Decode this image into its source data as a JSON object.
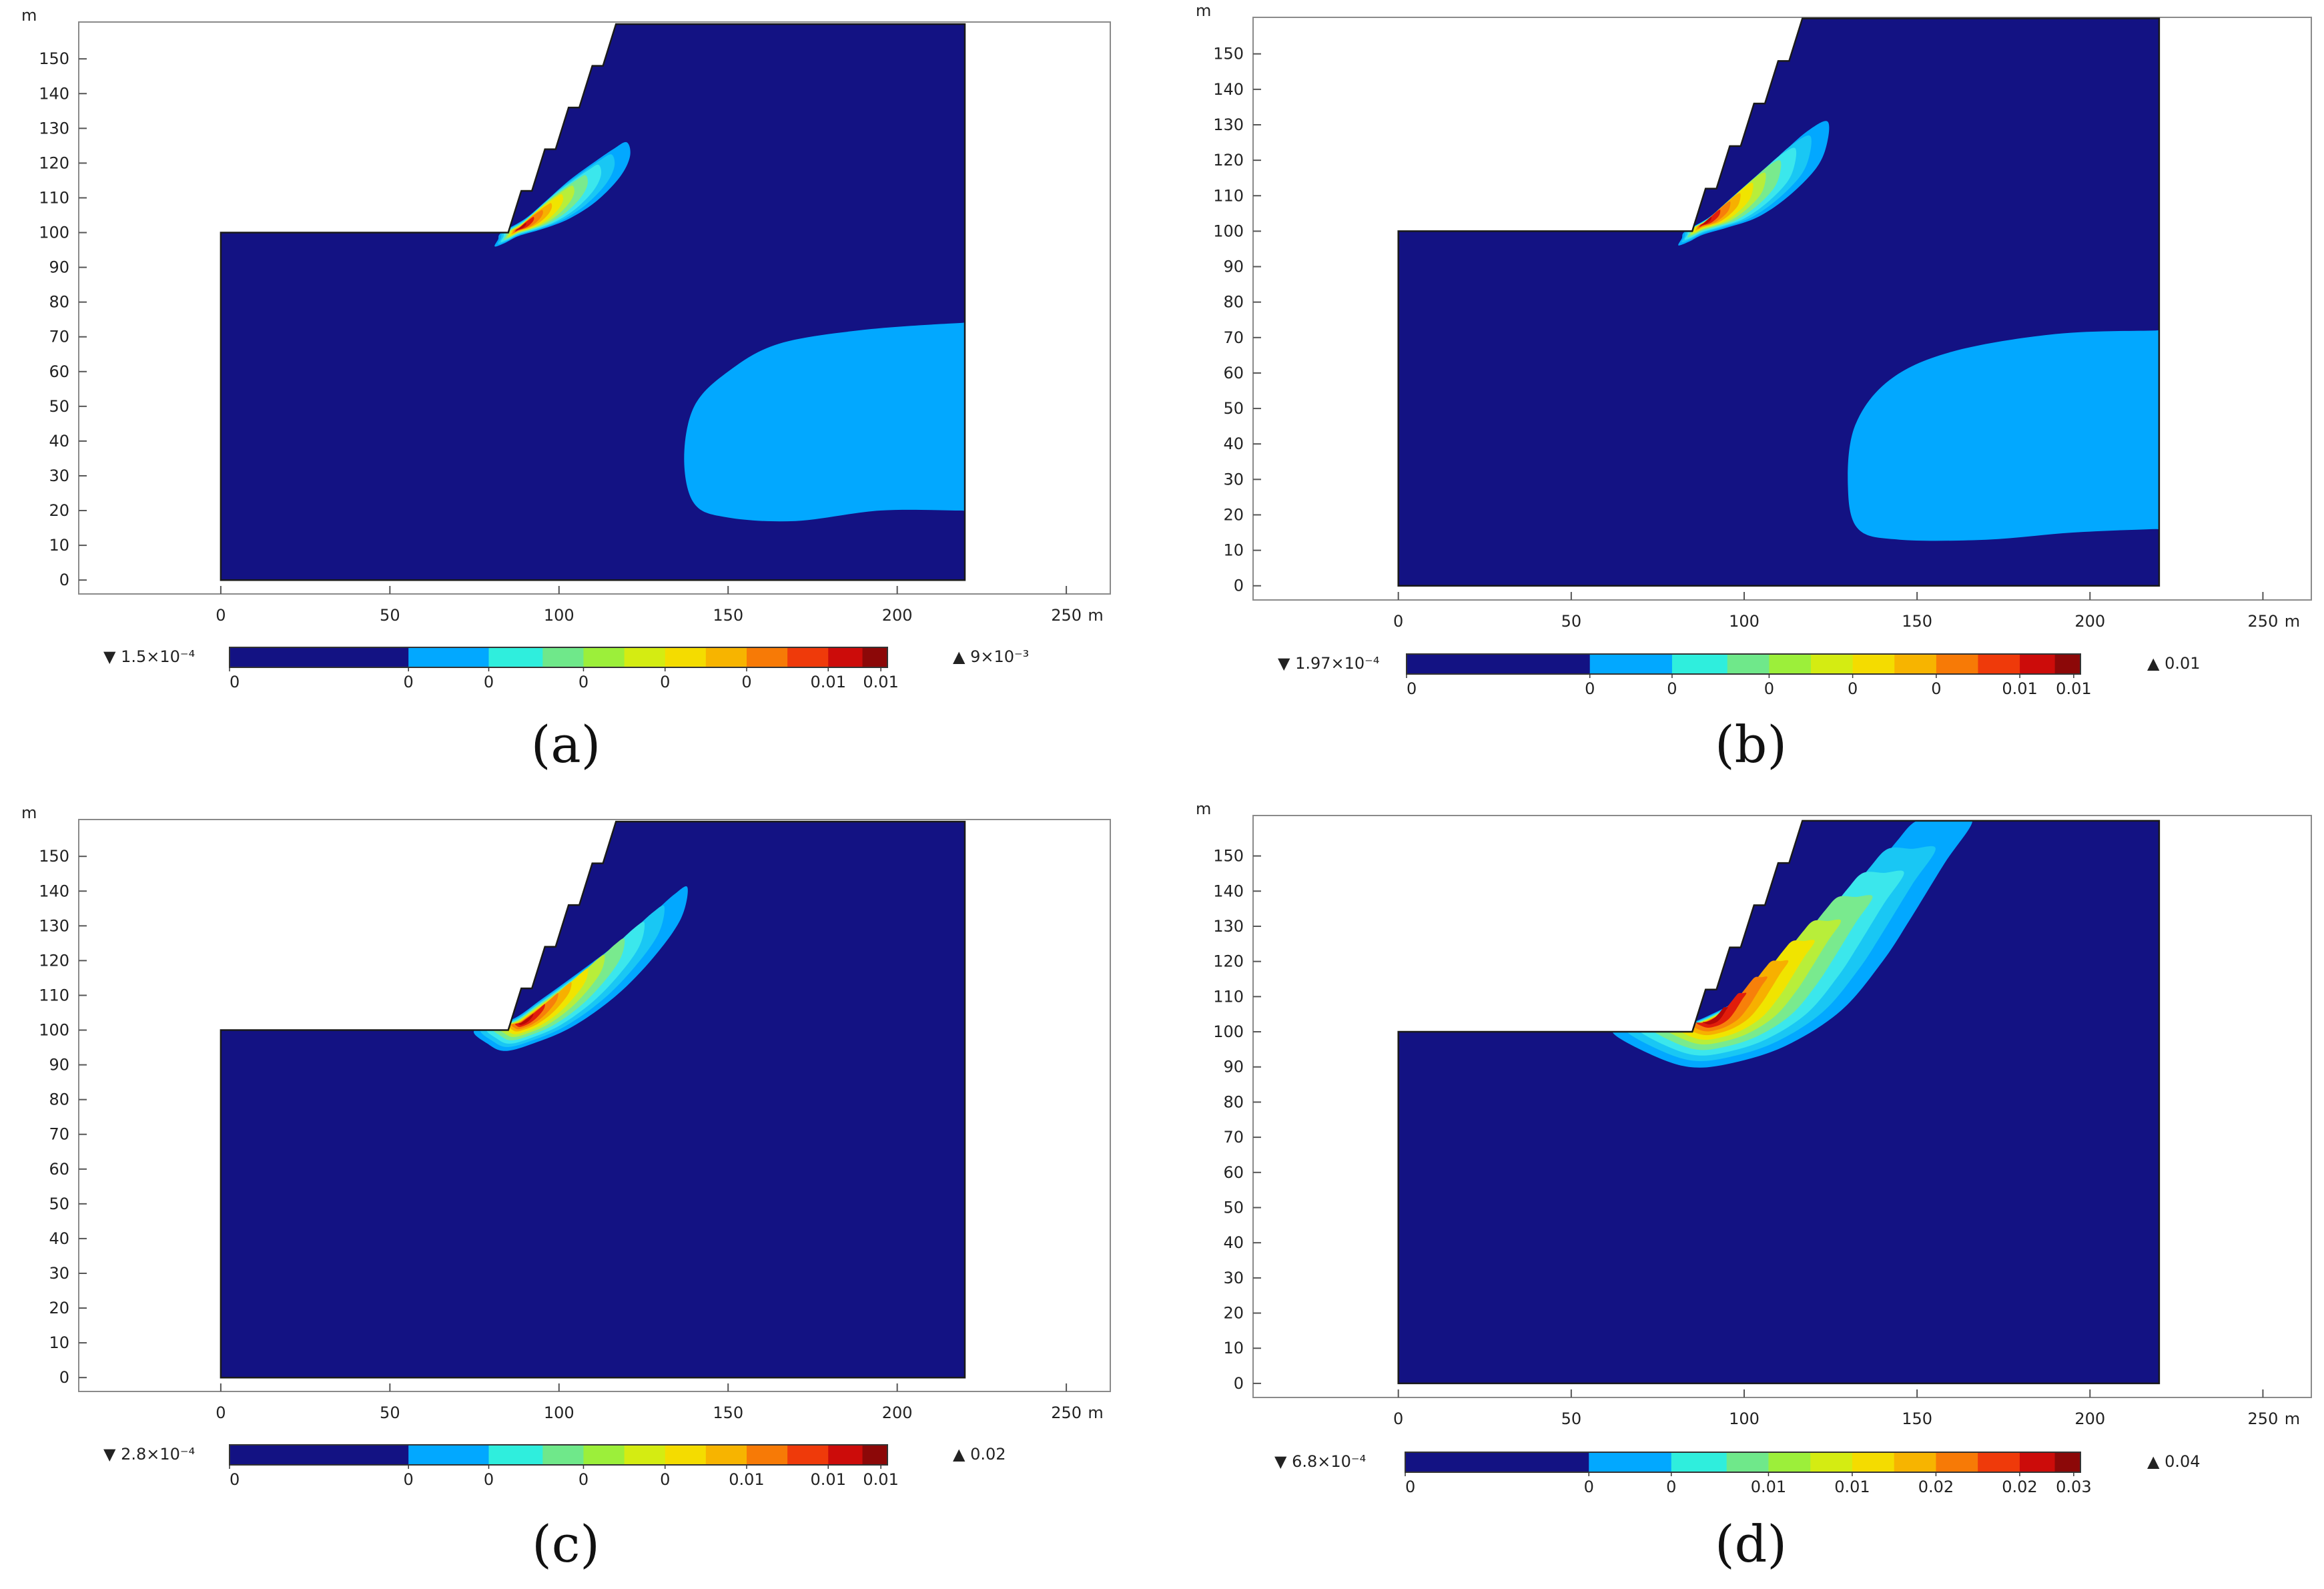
{
  "colors": {
    "background_field": "#131283",
    "light_blue_zone": "#02a8ff",
    "cyan_zone": "#3be7ec",
    "yellow_zone": "#f0e400",
    "orange_zone": "#f7800a",
    "red_zone": "#e11d0b",
    "colorbar": [
      "#131283",
      "#02a8ff",
      "#2feedd",
      "#6fe88a",
      "#9cef3a",
      "#d4ec12",
      "#f4dc00",
      "#f7b400",
      "#f77a06",
      "#ef3a0a",
      "#cc0c0a",
      "#8c0808"
    ]
  },
  "chart_data": [
    {
      "type": "heatmap",
      "caption": "(a)",
      "x_unit": "m",
      "y_unit": "m",
      "x_ticks": [
        0,
        50,
        100,
        150,
        200,
        250
      ],
      "y_ticks": [
        0,
        10,
        20,
        30,
        40,
        50,
        60,
        70,
        80,
        90,
        100,
        110,
        120,
        130,
        140,
        150
      ],
      "xlim": [
        -42,
        263
      ],
      "ylim": [
        -4,
        160.6
      ],
      "model_domain": {
        "x": [
          0,
          220
        ],
        "y": [
          0,
          160
        ],
        "slope_toe_x": 85,
        "slope_crest_x": 120,
        "toe_elevation": 100
      },
      "colorbar": {
        "min_label": "▼ 1.5×10⁻⁴",
        "max_label": "▲ 9×10⁻³",
        "tick_labels": [
          "0",
          "0",
          "0",
          "0",
          "0",
          "0",
          "0.01",
          "0.01"
        ]
      },
      "plume": {
        "x": [
          83,
          90,
          96,
          103,
          110,
          116,
          120,
          121,
          118,
          111,
          103,
          95,
          88,
          84,
          81,
          82
        ],
        "y": [
          100,
          104,
          109,
          115,
          120,
          124,
          126,
          122,
          116,
          109,
          104,
          101,
          99,
          97,
          96,
          98
        ]
      },
      "plume_core_x": 88,
      "plume_core_y": 101,
      "deep_zone": {
        "x": [
          219,
          190,
          165,
          150,
          140,
          137,
          140,
          150,
          170,
          195,
          219
        ],
        "y": [
          74,
          72,
          68,
          60,
          50,
          35,
          22,
          18,
          17,
          20,
          20
        ]
      }
    },
    {
      "type": "heatmap",
      "caption": "(b)",
      "x_unit": "m",
      "y_unit": "m",
      "x_ticks": [
        0,
        50,
        100,
        150,
        200,
        250
      ],
      "y_ticks": [
        0,
        10,
        20,
        30,
        40,
        50,
        60,
        70,
        80,
        90,
        100,
        110,
        120,
        130,
        140,
        150
      ],
      "xlim": [
        -42,
        264
      ],
      "ylim": [
        -4,
        160.3
      ],
      "model_domain": {
        "x": [
          0,
          220
        ],
        "y": [
          0,
          160
        ],
        "slope_toe_x": 85,
        "slope_crest_x": 120,
        "toe_elevation": 100
      },
      "colorbar": {
        "min_label": "▼ 1.97×10⁻⁴",
        "max_label": "▲ 0.01",
        "tick_labels": [
          "0",
          "0",
          "0",
          "0",
          "0",
          "0",
          "0.01",
          "0.01"
        ]
      },
      "plume": {
        "x": [
          83,
          90,
          97,
          104,
          111,
          118,
          124,
          124,
          121,
          113,
          104,
          95,
          88,
          84,
          81,
          82
        ],
        "y": [
          100,
          104,
          110,
          116,
          122,
          128,
          131,
          125,
          118,
          110,
          104,
          101,
          99,
          97,
          96,
          98
        ]
      },
      "plume_core_x": 88,
      "plume_core_y": 102,
      "deep_zone": {
        "x": [
          219,
          190,
          160,
          142,
          132,
          130,
          133,
          145,
          170,
          195,
          219
        ],
        "y": [
          72,
          71,
          66,
          58,
          45,
          28,
          16,
          13,
          13,
          15,
          16
        ]
      }
    },
    {
      "type": "heatmap",
      "caption": "(c)",
      "x_unit": "m",
      "y_unit": "m",
      "x_ticks": [
        0,
        50,
        100,
        150,
        200,
        250
      ],
      "y_ticks": [
        0,
        10,
        20,
        30,
        40,
        50,
        60,
        70,
        80,
        90,
        100,
        110,
        120,
        130,
        140,
        150
      ],
      "xlim": [
        -42,
        263
      ],
      "ylim": [
        -4,
        160.6
      ],
      "model_domain": {
        "x": [
          0,
          220
        ],
        "y": [
          0,
          160
        ],
        "slope_toe_x": 85,
        "slope_crest_x": 120,
        "toe_elevation": 100
      },
      "colorbar": {
        "min_label": "▼ 2.8×10⁻⁴",
        "max_label": "▲ 0.02",
        "tick_labels": [
          "0",
          "0",
          "0",
          "0",
          "0",
          "0.01",
          "0.01",
          "0.01"
        ]
      },
      "plume": {
        "x": [
          75,
          86,
          95,
          105,
          116,
          126,
          134,
          138,
          136,
          128,
          117,
          104,
          92,
          84,
          79
        ],
        "y": [
          100,
          103,
          109,
          116,
          124,
          132,
          139,
          141,
          132,
          121,
          110,
          101,
          96,
          94,
          96
        ]
      },
      "plume_core_x": 89,
      "plume_core_y": 102,
      "deep_zone": null
    },
    {
      "type": "heatmap",
      "caption": "(d)",
      "x_unit": "m",
      "y_unit": "m",
      "x_ticks": [
        0,
        50,
        100,
        150,
        200,
        250
      ],
      "y_ticks": [
        0,
        10,
        20,
        30,
        40,
        50,
        60,
        70,
        80,
        90,
        100,
        110,
        120,
        130,
        140,
        150
      ],
      "xlim": [
        -42,
        264
      ],
      "ylim": [
        -4,
        161.5
      ],
      "model_domain": {
        "x": [
          0,
          220
        ],
        "y": [
          0,
          160
        ],
        "slope_toe_x": 85,
        "slope_crest_x": 120,
        "toe_elevation": 100
      },
      "colorbar": {
        "min_label": "▼ 6.8×10⁻⁴",
        "max_label": "▲ 0.04",
        "tick_labels": [
          "0",
          "0",
          "0",
          "0.01",
          "0.01",
          "0.02",
          "0.02",
          "0.03"
        ]
      },
      "plume": {
        "x": [
          62,
          74,
          86,
          100,
          114,
          126,
          136,
          144,
          150,
          158,
          166,
          158,
          148,
          140,
          128,
          112,
          96,
          84,
          72
        ],
        "y": [
          100,
          100,
          103,
          110,
          120,
          132,
          144,
          154,
          160,
          160,
          160,
          148,
          132,
          120,
          106,
          96,
          91,
          90,
          94
        ]
      },
      "plume_core_x": 90,
      "plume_core_y": 103,
      "deep_zone": null
    }
  ]
}
